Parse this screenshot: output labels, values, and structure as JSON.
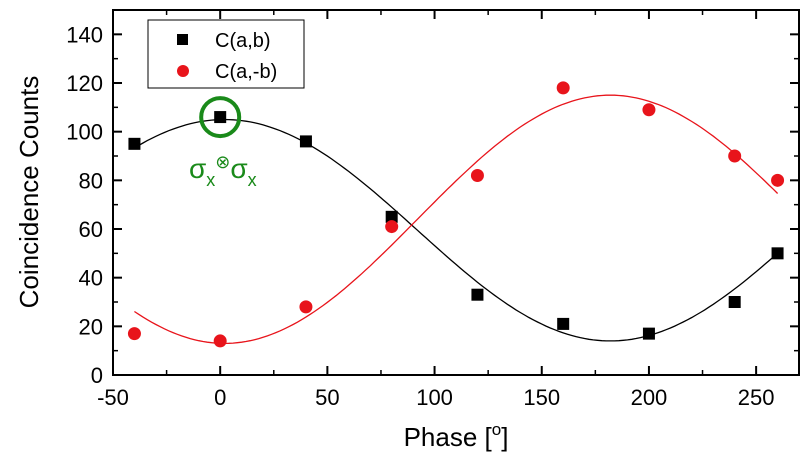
{
  "chart_data": {
    "type": "scatter",
    "xlabel": "Phase [°]",
    "xlabel_main": "Phase [",
    "xlabel_deg": "o",
    "xlabel_end": "]",
    "ylabel": "Coincidence Counts",
    "xlim": [
      -50,
      270
    ],
    "ylim": [
      0,
      150
    ],
    "x_ticks": [
      -50,
      0,
      50,
      100,
      150,
      200,
      250
    ],
    "y_ticks": [
      0,
      20,
      40,
      60,
      80,
      100,
      120,
      140
    ],
    "legend_position": "top-left",
    "grid": false,
    "series": [
      {
        "name": "C(a,b)",
        "marker": "square",
        "color": "#000000",
        "x": [
          -40,
          0,
          40,
          80,
          120,
          160,
          200,
          240,
          260
        ],
        "y": [
          95,
          106,
          96,
          65,
          33,
          21,
          17,
          30,
          50
        ],
        "fit": {
          "offset": 59.5,
          "amplitude": 45.5,
          "phase_deg": 2,
          "x_range": [
            -40,
            260
          ]
        }
      },
      {
        "name": "C(a,-b)",
        "marker": "circle",
        "color": "#e8141b",
        "x": [
          -40,
          0,
          40,
          80,
          120,
          160,
          200,
          240,
          260
        ],
        "y": [
          17,
          14,
          28,
          61,
          82,
          118,
          109,
          90,
          80
        ],
        "fit": {
          "offset": 64,
          "amplitude": -51,
          "phase_deg": 2,
          "x_range": [
            -40,
            260
          ]
        }
      }
    ],
    "annotation": {
      "sigma1": "σ",
      "sub1": "x",
      "otimes": "⊗",
      "sigma2": "σ",
      "sub2": "x",
      "color": "#1a8a1a",
      "circle_at": [
        0,
        106
      ]
    }
  }
}
